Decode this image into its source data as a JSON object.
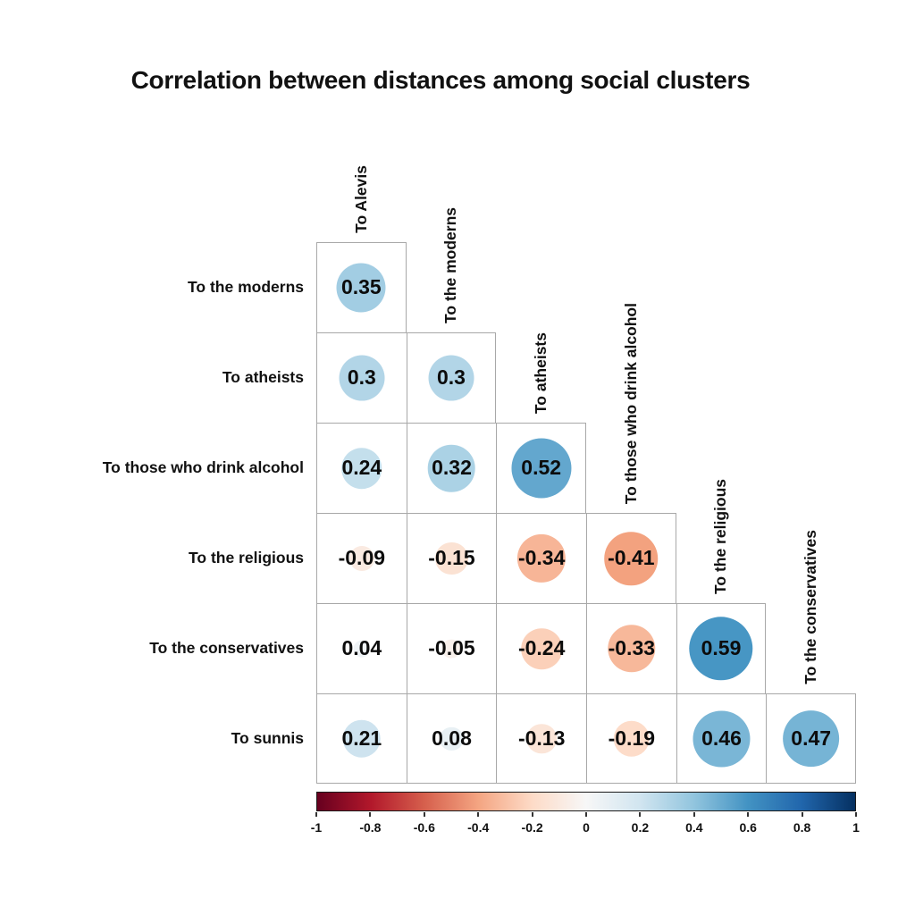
{
  "title": "Correlation between distances among social clusters",
  "matrix": {
    "columns": [
      "To Alevis",
      "To the moderns",
      "To atheists",
      "To those who drink alcohol",
      "To the religious",
      "To the conservatives"
    ],
    "rows": [
      "To the moderns",
      "To atheists",
      "To those who drink alcohol",
      "To the religious",
      "To the conservatives",
      "To sunnis"
    ],
    "cells": [
      {
        "row": 0,
        "col": 0,
        "value": 0.35,
        "label": "0.35",
        "color": "#a2cde3"
      },
      {
        "row": 1,
        "col": 0,
        "value": 0.3,
        "label": "0.3",
        "color": "#b2d5e7"
      },
      {
        "row": 1,
        "col": 1,
        "value": 0.3,
        "label": "0.3",
        "color": "#b2d5e7"
      },
      {
        "row": 2,
        "col": 0,
        "value": 0.24,
        "label": "0.24",
        "color": "#c4dfec"
      },
      {
        "row": 2,
        "col": 1,
        "value": 0.32,
        "label": "0.32",
        "color": "#abd2e5"
      },
      {
        "row": 2,
        "col": 2,
        "value": 0.52,
        "label": "0.52",
        "color": "#63a7ce"
      },
      {
        "row": 3,
        "col": 0,
        "value": -0.09,
        "label": "-0.09",
        "color": "#faeae1"
      },
      {
        "row": 3,
        "col": 1,
        "value": -0.15,
        "label": "-0.15",
        "color": "#fbe2d3"
      },
      {
        "row": 3,
        "col": 2,
        "value": -0.34,
        "label": "-0.34",
        "color": "#f7b597"
      },
      {
        "row": 3,
        "col": 3,
        "value": -0.41,
        "label": "-0.41",
        "color": "#f3a27f"
      },
      {
        "row": 4,
        "col": 0,
        "value": 0.04,
        "label": "0.04",
        "color": "#eff3f6"
      },
      {
        "row": 4,
        "col": 1,
        "value": -0.05,
        "label": "-0.05",
        "color": "#f8f0eb"
      },
      {
        "row": 4,
        "col": 2,
        "value": -0.24,
        "label": "-0.24",
        "color": "#fbd0b9"
      },
      {
        "row": 4,
        "col": 3,
        "value": -0.33,
        "label": "-0.33",
        "color": "#f7b89a"
      },
      {
        "row": 4,
        "col": 4,
        "value": 0.59,
        "label": "0.59",
        "color": "#4796c4"
      },
      {
        "row": 5,
        "col": 0,
        "value": 0.21,
        "label": "0.21",
        "color": "#cee3ef"
      },
      {
        "row": 5,
        "col": 1,
        "value": 0.08,
        "label": "0.08",
        "color": "#e8f0f4"
      },
      {
        "row": 5,
        "col": 2,
        "value": -0.13,
        "label": "-0.13",
        "color": "#fbe5d8"
      },
      {
        "row": 5,
        "col": 3,
        "value": -0.19,
        "label": "-0.19",
        "color": "#fddcc9"
      },
      {
        "row": 5,
        "col": 4,
        "value": 0.46,
        "label": "0.46",
        "color": "#7ab6d6"
      },
      {
        "row": 5,
        "col": 5,
        "value": 0.47,
        "label": "0.47",
        "color": "#76b4d5"
      }
    ]
  },
  "colorbar": {
    "min": -1,
    "max": 1,
    "tick_labels": [
      "-1",
      "-0.8",
      "-0.6",
      "-0.4",
      "-0.2",
      "0",
      "0.2",
      "0.4",
      "0.6",
      "0.8",
      "1"
    ],
    "gradient_stops": [
      "#67001f",
      "#b2182b",
      "#d6604d",
      "#f4a582",
      "#fddbc7",
      "#f7f7f7",
      "#d1e5f0",
      "#92c5de",
      "#4393c3",
      "#2166ac",
      "#053061"
    ]
  },
  "chart_data": {
    "type": "heatmap",
    "subtype": "correlation-matrix-lower-triangle",
    "title": "Correlation between distances among social clusters",
    "columns": [
      "To Alevis",
      "To the moderns",
      "To atheists",
      "To those who drink alcohol",
      "To the religious",
      "To the conservatives"
    ],
    "rows": [
      "To the moderns",
      "To atheists",
      "To those who drink alcohol",
      "To the religious",
      "To the conservatives",
      "To sunnis"
    ],
    "values": [
      [
        0.35,
        null,
        null,
        null,
        null,
        null
      ],
      [
        0.3,
        0.3,
        null,
        null,
        null,
        null
      ],
      [
        0.24,
        0.32,
        0.52,
        null,
        null,
        null
      ],
      [
        -0.09,
        -0.15,
        -0.34,
        -0.41,
        null,
        null
      ],
      [
        0.04,
        -0.05,
        -0.24,
        -0.33,
        0.59,
        null
      ],
      [
        0.21,
        0.08,
        -0.13,
        -0.19,
        0.46,
        0.47
      ]
    ],
    "glyph": "circle sized by absolute correlation, colored by sign/magnitude",
    "colorscale": "RdBu (dark red -1, white 0, dark blue +1)",
    "colorbar_ticks": [
      -1,
      -0.8,
      -0.6,
      -0.4,
      -0.2,
      0,
      0.2,
      0.4,
      0.6,
      0.8,
      1
    ],
    "grid": true,
    "legend_position": "bottom colorbar"
  }
}
